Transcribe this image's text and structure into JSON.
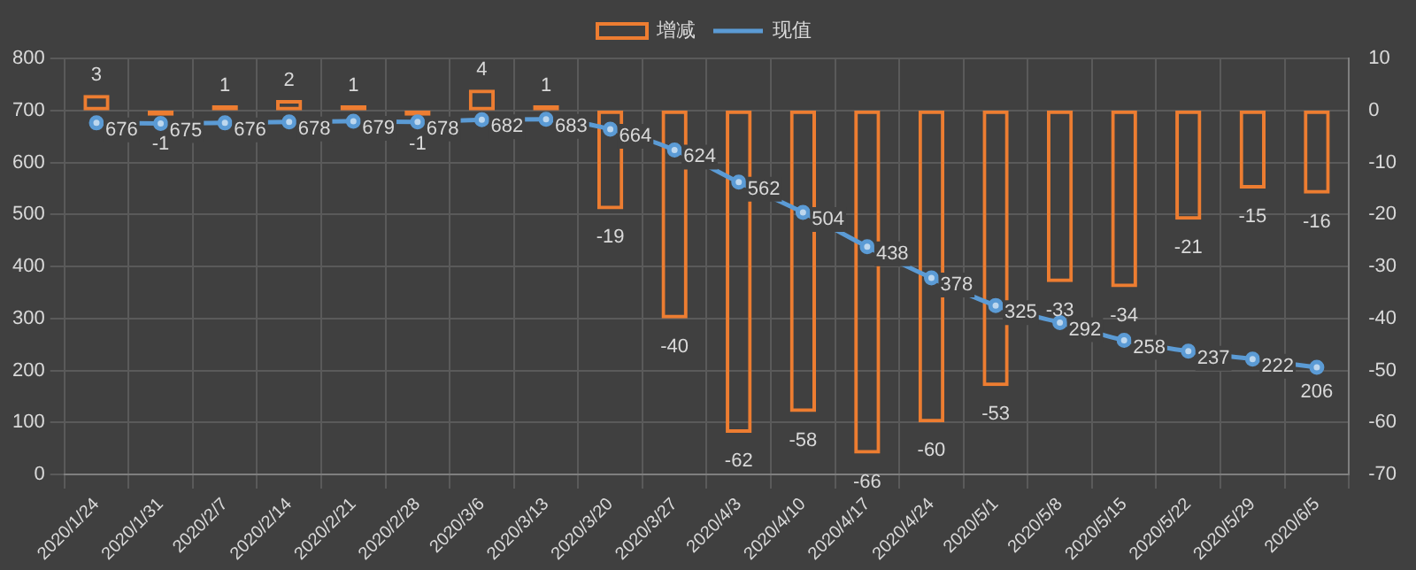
{
  "chart_data": {
    "type": "bar",
    "categories": [
      "2020/1/24",
      "2020/1/31",
      "2020/2/7",
      "2020/2/14",
      "2020/2/21",
      "2020/2/28",
      "2020/3/6",
      "2020/3/13",
      "2020/3/20",
      "2020/3/27",
      "2020/4/3",
      "2020/4/10",
      "2020/4/17",
      "2020/4/24",
      "2020/5/1",
      "2020/5/8",
      "2020/5/15",
      "2020/5/22",
      "2020/5/29",
      "2020/6/5"
    ],
    "series": [
      {
        "name": "增减",
        "axis": "y2",
        "color": "#ed7d31",
        "values": [
          3,
          -1,
          1,
          2,
          1,
          -1,
          4,
          1,
          -19,
          -40,
          -62,
          -58,
          -66,
          -60,
          -53,
          -33,
          -34,
          -21,
          -15,
          -16
        ]
      },
      {
        "name": "现值",
        "type": "line",
        "color": "#5b9bd5",
        "values": [
          676,
          675,
          676,
          678,
          679,
          678,
          682,
          683,
          664,
          624,
          562,
          504,
          438,
          378,
          325,
          292,
          258,
          237,
          222,
          206
        ]
      }
    ],
    "ylim": [
      0,
      800
    ],
    "yticks": [
      0,
      100,
      200,
      300,
      400,
      500,
      600,
      700,
      800
    ],
    "y2lim": [
      -70,
      10
    ],
    "y2ticks": [
      -70,
      -60,
      -50,
      -40,
      -30,
      -20,
      -10,
      0,
      10
    ],
    "grid": true,
    "legend": "top",
    "marker": "circle",
    "data_labels": true
  }
}
